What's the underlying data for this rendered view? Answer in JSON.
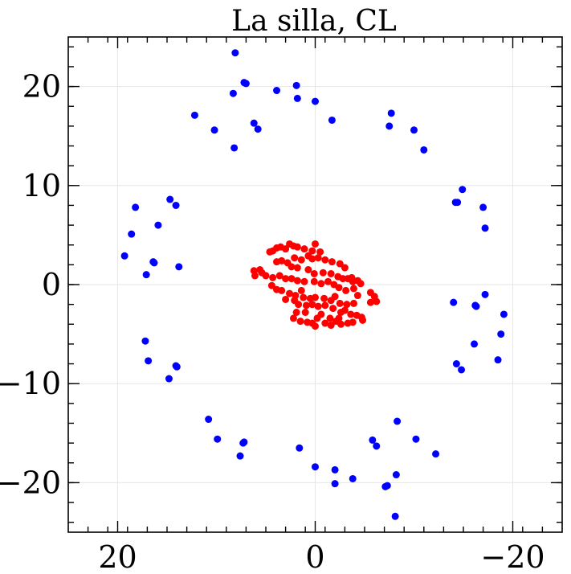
{
  "chart_data": {
    "type": "scatter",
    "title": "La silla, CL",
    "xlabel": "",
    "ylabel": "",
    "xlim": [
      25,
      -25
    ],
    "ylim": [
      -25,
      25
    ],
    "x_axis_reversed": true,
    "grid": true,
    "x_ticks": [
      20,
      0,
      -20
    ],
    "x_tick_labels": [
      "20",
      "0",
      "−20"
    ],
    "y_ticks": [
      20,
      10,
      0,
      -10,
      -20
    ],
    "y_tick_labels": [
      "20",
      "10",
      "0",
      "−10",
      "−20"
    ],
    "series": [
      {
        "color": "#0000ff",
        "points": [
          [
            8.1,
            23.4
          ],
          [
            7.2,
            20.4
          ],
          [
            7.0,
            20.3
          ],
          [
            8.3,
            19.3
          ],
          [
            3.9,
            19.6
          ],
          [
            1.9,
            20.1
          ],
          [
            1.8,
            18.8
          ],
          [
            0.0,
            18.5
          ],
          [
            12.2,
            17.1
          ],
          [
            10.2,
            15.6
          ],
          [
            6.2,
            16.3
          ],
          [
            5.8,
            15.7
          ],
          [
            8.2,
            13.8
          ],
          [
            -1.7,
            16.6
          ],
          [
            -7.7,
            17.3
          ],
          [
            -7.5,
            16.0
          ],
          [
            -10.0,
            15.6
          ],
          [
            -11.0,
            13.6
          ],
          [
            -14.9,
            9.6
          ],
          [
            -14.4,
            8.3
          ],
          [
            -14.2,
            8.3
          ],
          [
            -17.0,
            7.8
          ],
          [
            -17.2,
            5.7
          ],
          [
            14.7,
            8.6
          ],
          [
            14.1,
            8.0
          ],
          [
            18.2,
            7.8
          ],
          [
            15.9,
            6.0
          ],
          [
            18.6,
            5.1
          ],
          [
            19.3,
            2.9
          ],
          [
            16.4,
            2.3
          ],
          [
            16.3,
            2.2
          ],
          [
            13.8,
            1.8
          ],
          [
            17.1,
            1.0
          ],
          [
            -14.0,
            -1.8
          ],
          [
            -17.2,
            -1.0
          ],
          [
            -16.3,
            -2.2
          ],
          [
            -16.2,
            -2.1
          ],
          [
            -19.1,
            -3.0
          ],
          [
            -18.8,
            -5.0
          ],
          [
            -16.1,
            -6.0
          ],
          [
            -18.5,
            -7.6
          ],
          [
            -14.3,
            -8.0
          ],
          [
            -14.8,
            -8.6
          ],
          [
            17.2,
            -5.7
          ],
          [
            16.9,
            -7.7
          ],
          [
            14.1,
            -8.2
          ],
          [
            14.0,
            -8.3
          ],
          [
            14.8,
            -9.5
          ],
          [
            10.8,
            -13.6
          ],
          [
            9.9,
            -15.6
          ],
          [
            7.3,
            -16.0
          ],
          [
            7.2,
            -15.9
          ],
          [
            7.6,
            -17.3
          ],
          [
            1.6,
            -16.5
          ],
          [
            -5.8,
            -15.7
          ],
          [
            -6.2,
            -16.3
          ],
          [
            -8.3,
            -13.8
          ],
          [
            -10.2,
            -15.6
          ],
          [
            -12.2,
            -17.1
          ],
          [
            0.0,
            -18.4
          ],
          [
            -2.0,
            -18.7
          ],
          [
            -2.0,
            -20.1
          ],
          [
            -3.8,
            -19.6
          ],
          [
            -7.3,
            -20.3
          ],
          [
            -7.1,
            -20.4
          ],
          [
            -8.2,
            -19.2
          ],
          [
            -8.1,
            -23.4
          ]
        ]
      },
      {
        "color": "#ff0000",
        "points": [
          [
            3.5,
            3.8
          ],
          [
            2.6,
            4.1
          ],
          [
            1.8,
            3.8
          ],
          [
            0.0,
            4.1
          ],
          [
            3.9,
            3.7
          ],
          [
            4.3,
            3.4
          ],
          [
            4.6,
            3.3
          ],
          [
            2.2,
            3.9
          ],
          [
            3.0,
            3.6
          ],
          [
            1.1,
            3.6
          ],
          [
            0.3,
            3.4
          ],
          [
            -0.5,
            3.3
          ],
          [
            3.4,
            2.4
          ],
          [
            2.1,
            2.7
          ],
          [
            1.4,
            2.5
          ],
          [
            0.7,
            2.9
          ],
          [
            0.3,
            2.6
          ],
          [
            -0.3,
            2.7
          ],
          [
            -1.0,
            2.5
          ],
          [
            -1.7,
            2.3
          ],
          [
            -2.5,
            2.1
          ],
          [
            -3.0,
            1.7
          ],
          [
            3.9,
            2.3
          ],
          [
            2.8,
            2.2
          ],
          [
            2.4,
            1.8
          ],
          [
            1.8,
            1.7
          ],
          [
            0.7,
            1.5
          ],
          [
            0.1,
            1.1
          ],
          [
            -0.8,
            1.2
          ],
          [
            -1.6,
            1.1
          ],
          [
            -2.3,
            0.8
          ],
          [
            -3.3,
            0.6
          ],
          [
            -3.8,
            0.3
          ],
          [
            -4.3,
            0.4
          ],
          [
            -4.6,
            0.1
          ],
          [
            -3.7,
            0.7
          ],
          [
            -2.8,
            0.6
          ],
          [
            -3.9,
            -0.4
          ],
          [
            6.2,
            1.4
          ],
          [
            5.6,
            1.5
          ],
          [
            6.1,
            0.9
          ],
          [
            5.4,
            1.2
          ],
          [
            5.0,
            0.9
          ],
          [
            4.3,
            0.7
          ],
          [
            3.6,
            0.9
          ],
          [
            3.0,
            0.6
          ],
          [
            2.4,
            0.6
          ],
          [
            1.8,
            0.4
          ],
          [
            1.1,
            0.3
          ],
          [
            0.1,
            0.3
          ],
          [
            -0.6,
            0.1
          ],
          [
            -1.3,
            0.3
          ],
          [
            -1.9,
            0.0
          ],
          [
            -2.4,
            -0.3
          ],
          [
            -3.1,
            -0.6
          ],
          [
            -4.3,
            -1.1
          ],
          [
            -5.6,
            -0.8
          ],
          [
            -6.0,
            -1.2
          ],
          [
            -6.2,
            -1.7
          ],
          [
            -5.6,
            -1.8
          ],
          [
            4.4,
            -0.1
          ],
          [
            3.9,
            -0.5
          ],
          [
            3.4,
            -0.6
          ],
          [
            2.6,
            -0.9
          ],
          [
            2.0,
            -1.1
          ],
          [
            1.4,
            -0.6
          ],
          [
            1.2,
            -1.3
          ],
          [
            0.5,
            -1.4
          ],
          [
            0.0,
            -1.3
          ],
          [
            -0.9,
            -1.4
          ],
          [
            -1.6,
            -1.6
          ],
          [
            -2.0,
            -1.2
          ],
          [
            -2.5,
            -1.9
          ],
          [
            -3.2,
            -2.0
          ],
          [
            -3.9,
            -1.9
          ],
          [
            3.0,
            -1.5
          ],
          [
            2.1,
            -1.6
          ],
          [
            1.7,
            -2.0
          ],
          [
            0.9,
            -2.1
          ],
          [
            0.3,
            -2.0
          ],
          [
            -0.3,
            -2.2
          ],
          [
            -1.0,
            -2.1
          ],
          [
            -1.8,
            -2.4
          ],
          [
            -2.6,
            -2.8
          ],
          [
            -3.0,
            -2.6
          ],
          [
            -3.6,
            -3.0
          ],
          [
            -4.2,
            -3.1
          ],
          [
            -4.7,
            -3.3
          ],
          [
            -4.8,
            -3.6
          ],
          [
            -3.8,
            -3.8
          ],
          [
            -3.3,
            -3.9
          ],
          [
            -2.6,
            -4.0
          ],
          [
            -2.4,
            -3.4
          ],
          [
            -1.5,
            -3.4
          ],
          [
            -0.6,
            -3.0
          ],
          [
            1.0,
            -2.8
          ],
          [
            1.9,
            -2.8
          ],
          [
            2.2,
            -3.4
          ],
          [
            1.5,
            -3.7
          ],
          [
            0.8,
            -3.8
          ],
          [
            0.3,
            -3.9
          ],
          [
            -1.6,
            -4.1
          ],
          [
            0.0,
            -4.2
          ],
          [
            -1.0,
            -3.9
          ],
          [
            -2.1,
            -3.7
          ],
          [
            -0.2,
            -3.4
          ]
        ]
      }
    ]
  }
}
